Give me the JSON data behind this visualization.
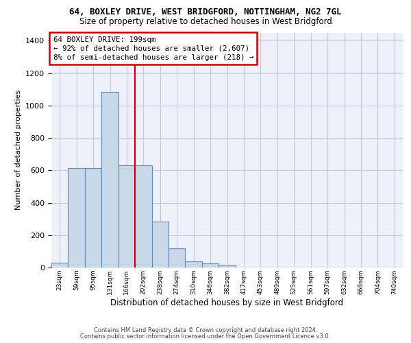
{
  "title_line1": "64, BOXLEY DRIVE, WEST BRIDGFORD, NOTTINGHAM, NG2 7GL",
  "title_line2": "Size of property relative to detached houses in West Bridgford",
  "xlabel": "Distribution of detached houses by size in West Bridgford",
  "ylabel": "Number of detached properties",
  "bin_labels": [
    "23sqm",
    "59sqm",
    "95sqm",
    "131sqm",
    "166sqm",
    "202sqm",
    "238sqm",
    "274sqm",
    "310sqm",
    "346sqm",
    "382sqm",
    "417sqm",
    "453sqm",
    "489sqm",
    "525sqm",
    "561sqm",
    "597sqm",
    "632sqm",
    "668sqm",
    "704sqm",
    "740sqm"
  ],
  "bar_values": [
    30,
    615,
    615,
    1085,
    630,
    630,
    285,
    120,
    40,
    25,
    15,
    0,
    0,
    0,
    0,
    0,
    0,
    0,
    0,
    0,
    0
  ],
  "bar_color": "#c8d8e8",
  "bar_edge_color": "#5b8db8",
  "vline_color": "#cc0000",
  "vline_x": 4.5,
  "annotation_text": "64 BOXLEY DRIVE: 199sqm\n← 92% of detached houses are smaller (2,607)\n8% of semi-detached houses are larger (218) →",
  "annotation_box_edgecolor": "#cc0000",
  "ylim": [
    0,
    1450
  ],
  "yticks": [
    0,
    200,
    400,
    600,
    800,
    1000,
    1200,
    1400
  ],
  "grid_color": "#c8c8d8",
  "plot_bg_color": "#eef0fa",
  "footer_line1": "Contains HM Land Registry data © Crown copyright and database right 2024.",
  "footer_line2": "Contains public sector information licensed under the Open Government Licence v3.0."
}
